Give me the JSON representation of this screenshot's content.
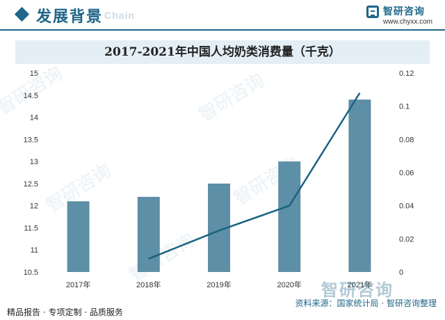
{
  "header": {
    "title": "发展背景",
    "watermark_text": "Chain",
    "brand_name": "智研咨询",
    "brand_url": "www.chyxx.com",
    "accent_color": "#1f6688"
  },
  "chart_data": {
    "type": "bar",
    "title": "2017-2021年中国人均奶类消费量（千克）",
    "categories": [
      "2017年",
      "2018年",
      "2019年",
      "2020年",
      "2021年"
    ],
    "series": [
      {
        "type": "bar",
        "axis": "left",
        "color": "#5d8fa6",
        "values": [
          12.1,
          12.2,
          12.5,
          13.0,
          14.4
        ]
      },
      {
        "type": "line",
        "axis": "right",
        "color": "#1a6280",
        "values": [
          null,
          0.008,
          0.025,
          0.04,
          0.108
        ]
      }
    ],
    "left_axis": {
      "ylim": [
        10.5,
        15
      ],
      "ticks": [
        "10.5",
        "11",
        "11.5",
        "12",
        "12.5",
        "13",
        "13.5",
        "14",
        "14.5",
        "15"
      ]
    },
    "right_axis": {
      "ylim": [
        0,
        0.12
      ],
      "ticks": [
        "0",
        "0.02",
        "0.04",
        "0.06",
        "0.08",
        "0.1",
        "0.12"
      ]
    },
    "xlabel": "",
    "ylabel": "",
    "grid": false
  },
  "footer": {
    "left": "精品报告 · 专项定制 · 品质服务",
    "right": "资料来源：国家统计局 · 智研咨询整理",
    "corner_watermark": "智研咨询"
  }
}
